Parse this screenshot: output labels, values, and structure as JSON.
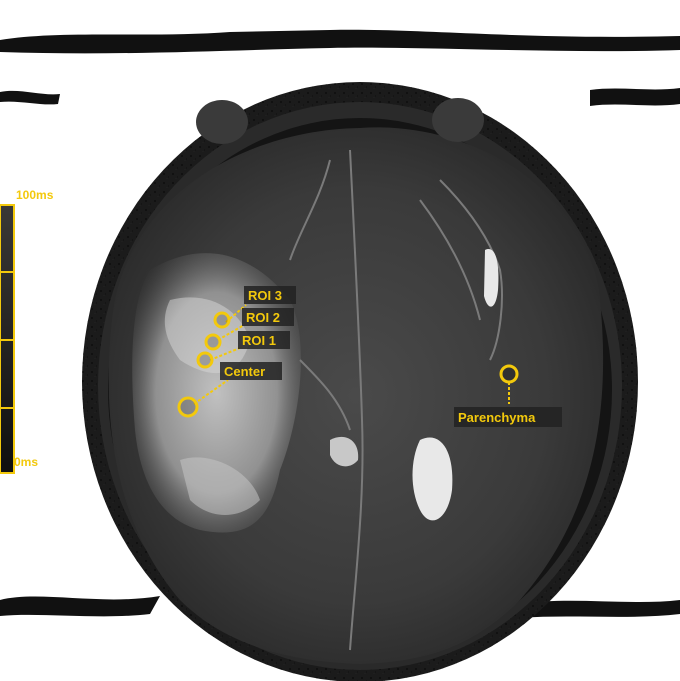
{
  "scale_bar": {
    "max_label": "100ms",
    "min_label": "0ms",
    "color": "#f3c90c"
  },
  "roi_markers": [
    {
      "label": "ROI 3"
    },
    {
      "label": "ROI 2"
    },
    {
      "label": "ROI 1"
    },
    {
      "label": "Center"
    },
    {
      "label": "Parenchyma"
    }
  ],
  "colors": {
    "marker": "#f3c90c",
    "label_background": "#222222",
    "background": "#ffffff"
  }
}
